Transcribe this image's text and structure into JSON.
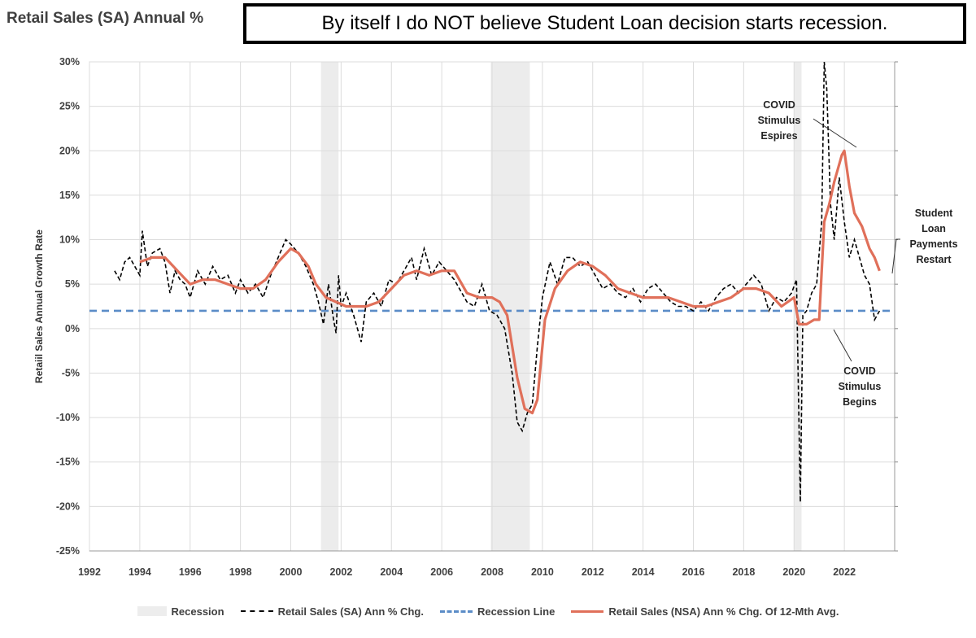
{
  "header": {
    "title": "Retail Sales (SA) Annual %",
    "callout": "By itself I do NOT believe Student Loan decision starts recession."
  },
  "chart_data": {
    "type": "line",
    "ylabel": "Retaiil Sales Annual Growth Rate",
    "xlim": [
      1992,
      2024
    ],
    "ylim": [
      -25,
      30
    ],
    "x_ticks": [
      "1992",
      "1994",
      "1996",
      "1998",
      "2000",
      "2002",
      "2004",
      "2006",
      "2008",
      "2010",
      "2012",
      "2014",
      "2016",
      "2018",
      "2020",
      "2022"
    ],
    "y_ticks": [
      "30%",
      "25%",
      "20%",
      "15%",
      "10%",
      "5%",
      "0%",
      "-5%",
      "-10%",
      "-15%",
      "-20%",
      "-25%"
    ],
    "grid": true,
    "legend_position": "bottom",
    "recessions": [
      [
        2001.2,
        2001.9
      ],
      [
        2007.95,
        2009.5
      ],
      [
        2020.0,
        2020.3
      ]
    ],
    "recession_line": 2.0,
    "series": [
      {
        "name": "Retail Sales (SA) Ann % Chg.",
        "color": "#000000",
        "style": "dashed",
        "x": [
          1993.0,
          1993.2,
          1993.4,
          1993.6,
          1993.8,
          1994.0,
          1994.1,
          1994.3,
          1994.5,
          1994.8,
          1995.0,
          1995.2,
          1995.4,
          1995.6,
          1995.8,
          1996.0,
          1996.3,
          1996.6,
          1996.9,
          1997.2,
          1997.5,
          1997.8,
          1998.0,
          1998.3,
          1998.6,
          1998.9,
          1999.2,
          1999.5,
          1999.8,
          2000.0,
          2000.3,
          2000.6,
          2000.9,
          2001.1,
          2001.3,
          2001.5,
          2001.7,
          2001.8,
          2001.9,
          2002.0,
          2002.2,
          2002.5,
          2002.8,
          2003.0,
          2003.3,
          2003.6,
          2003.9,
          2004.2,
          2004.5,
          2004.8,
          2005.0,
          2005.3,
          2005.6,
          2005.9,
          2006.2,
          2006.5,
          2006.8,
          2007.0,
          2007.3,
          2007.6,
          2007.9,
          2008.2,
          2008.5,
          2008.8,
          2009.0,
          2009.2,
          2009.4,
          2009.6,
          2009.8,
          2010.0,
          2010.3,
          2010.6,
          2010.9,
          2011.2,
          2011.5,
          2011.8,
          2012.1,
          2012.4,
          2012.7,
          2013.0,
          2013.3,
          2013.6,
          2013.9,
          2014.2,
          2014.5,
          2014.8,
          2015.1,
          2015.4,
          2015.7,
          2016.0,
          2016.3,
          2016.6,
          2016.9,
          2017.2,
          2017.5,
          2017.8,
          2018.1,
          2018.4,
          2018.7,
          2019.0,
          2019.3,
          2019.6,
          2019.9,
          2020.1,
          2020.25,
          2020.35,
          2020.5,
          2020.7,
          2020.9,
          2021.1,
          2021.2,
          2021.3,
          2021.45,
          2021.6,
          2021.8,
          2022.0,
          2022.2,
          2022.4,
          2022.6,
          2022.8,
          2023.0,
          2023.2,
          2023.4
        ],
        "y": [
          6.5,
          5.5,
          7.5,
          8.0,
          7.0,
          6.0,
          11.0,
          7.0,
          8.5,
          9.0,
          7.5,
          4.0,
          6.5,
          5.5,
          5.0,
          3.5,
          6.5,
          5.0,
          7.0,
          5.5,
          6.0,
          4.0,
          5.5,
          4.0,
          5.0,
          3.5,
          6.0,
          8.0,
          10.0,
          9.5,
          8.5,
          7.0,
          5.0,
          3.0,
          0.5,
          5.0,
          1.0,
          -0.5,
          6.0,
          2.5,
          4.0,
          1.5,
          -1.5,
          3.0,
          4.0,
          2.5,
          5.5,
          5.0,
          6.5,
          8.0,
          5.5,
          9.0,
          6.0,
          7.5,
          6.5,
          5.5,
          4.0,
          3.0,
          2.5,
          5.0,
          2.0,
          1.5,
          0.0,
          -5.0,
          -10.5,
          -11.5,
          -9.5,
          -8.5,
          -2.0,
          3.5,
          7.5,
          5.0,
          8.0,
          8.0,
          7.0,
          7.5,
          6.0,
          4.5,
          5.0,
          4.0,
          3.5,
          4.5,
          3.0,
          4.5,
          5.0,
          4.0,
          3.0,
          2.5,
          2.5,
          2.0,
          3.0,
          2.0,
          3.5,
          4.5,
          5.0,
          4.0,
          5.0,
          6.0,
          5.0,
          2.0,
          3.5,
          3.0,
          4.0,
          5.5,
          -19.5,
          1.5,
          2.0,
          4.0,
          5.0,
          12.0,
          30.0,
          27.0,
          14.0,
          10.0,
          17.0,
          12.0,
          8.0,
          10.0,
          8.0,
          6.0,
          5.0,
          1.0,
          2.0
        ]
      },
      {
        "name": "Retail Sales (NSA) Ann % Chg. Of 12-Mth Avg.",
        "color": "#e0705a",
        "style": "solid",
        "x": [
          1994.0,
          1994.5,
          1995.0,
          1995.5,
          1996.0,
          1996.5,
          1997.0,
          1997.5,
          1998.0,
          1998.5,
          1999.0,
          1999.5,
          2000.0,
          2000.3,
          2000.7,
          2001.0,
          2001.4,
          2001.8,
          2002.2,
          2002.6,
          2003.0,
          2003.5,
          2004.0,
          2004.5,
          2005.0,
          2005.5,
          2006.0,
          2006.5,
          2007.0,
          2007.5,
          2008.0,
          2008.3,
          2008.6,
          2009.0,
          2009.3,
          2009.6,
          2009.8,
          2010.1,
          2010.5,
          2011.0,
          2011.5,
          2012.0,
          2012.5,
          2013.0,
          2013.5,
          2014.0,
          2014.5,
          2015.0,
          2015.5,
          2016.0,
          2016.5,
          2017.0,
          2017.5,
          2018.0,
          2018.5,
          2019.0,
          2019.5,
          2020.0,
          2020.2,
          2020.5,
          2020.8,
          2021.0,
          2021.2,
          2021.4,
          2021.6,
          2021.9,
          2022.0,
          2022.2,
          2022.4,
          2022.7,
          2023.0,
          2023.2,
          2023.4
        ],
        "y": [
          7.5,
          8.0,
          8.0,
          6.5,
          5.0,
          5.5,
          5.5,
          5.0,
          4.5,
          4.5,
          5.5,
          7.5,
          9.0,
          8.5,
          7.0,
          5.0,
          3.5,
          3.0,
          2.5,
          2.5,
          2.5,
          3.0,
          4.5,
          6.0,
          6.5,
          6.0,
          6.5,
          6.5,
          4.0,
          3.5,
          3.5,
          3.0,
          1.5,
          -5.5,
          -9.0,
          -9.5,
          -8.0,
          1.0,
          4.5,
          6.5,
          7.5,
          7.0,
          6.0,
          4.5,
          4.0,
          3.5,
          3.5,
          3.5,
          3.0,
          2.5,
          2.5,
          3.0,
          3.5,
          4.5,
          4.5,
          4.0,
          2.5,
          3.5,
          0.5,
          0.5,
          1.0,
          1.0,
          12.0,
          14.0,
          16.5,
          19.5,
          20.0,
          16.0,
          13.0,
          11.5,
          9.0,
          8.0,
          6.5
        ]
      }
    ],
    "annotations": [
      {
        "lines": [
          "COVID",
          "Stimulus",
          "Espires"
        ]
      },
      {
        "lines": [
          "Student",
          "Loan",
          "Payments",
          "Restart"
        ]
      },
      {
        "lines": [
          "COVID",
          "Stimulus",
          "Begins"
        ]
      }
    ]
  },
  "legend": {
    "recession": "Recession",
    "sa": "Retail Sales (SA) Ann % Chg.",
    "line": "Recession Line",
    "nsa": "Retail Sales (NSA) Ann % Chg. Of 12-Mth Avg."
  }
}
